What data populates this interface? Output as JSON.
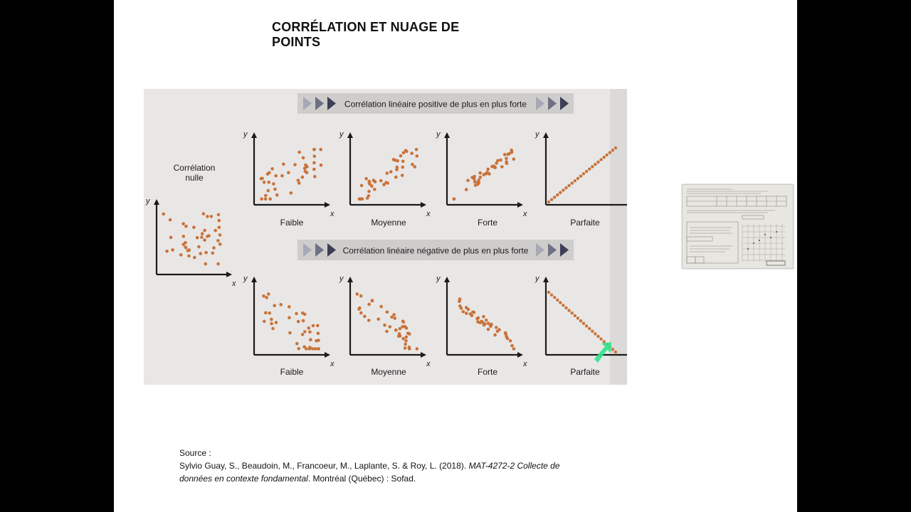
{
  "slide": {
    "title": "CORRÉLATION ET NUAGE DE POINTS"
  },
  "figure": {
    "positive_banner": "Corrélation linéaire positive de plus en plus forte",
    "negative_banner": "Corrélation linéaire négative de plus en plus forte",
    "null_label": [
      "Corrélation",
      "nulle"
    ],
    "axis_x": "x",
    "axis_y": "y",
    "strengths": [
      "Faible",
      "Moyenne",
      "Forte",
      "Parfaite"
    ],
    "colors": {
      "dot": "#c8733a",
      "axis": "#1a1a1a",
      "banner_bg": "#cfcdcc",
      "arrow_dark": "#3d3f57",
      "arrow_mid": "#6e7085",
      "arrow_light": "#a6a8b5",
      "highlight": "#2fe38a"
    }
  },
  "source": {
    "heading": "Source :",
    "authors": "Sylvio Guay, S., Beaudoin, M., Francoeur, M., Laplante, S. & Roy, L. (2018).",
    "title_italic": "MAT-4272-2 Collecte de données en contexte fondamental",
    "publisher": ". Montréal (Québec) : Sofad."
  }
}
